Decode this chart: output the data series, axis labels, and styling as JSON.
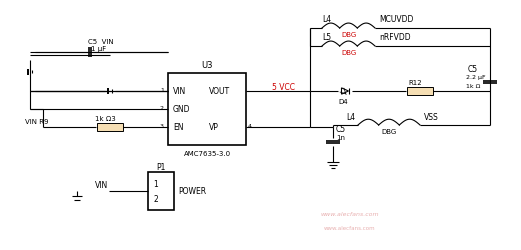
{
  "bg_color": "#ffffff",
  "line_color": "#000000",
  "ic_label": "U3",
  "ic_name": "AMC7635-3.0",
  "ic_vin": "VIN",
  "ic_vout": "VOUT",
  "ic_gnd": "GND",
  "ic_en": "EN",
  "ic_vp": "VP",
  "pin1": "1",
  "pin2": "2",
  "pin3": "3",
  "pin4": "4",
  "c5_top_lbl": "C5  VIN",
  "c5_top_val": "1 μF",
  "r9_lbl": "VIN R9",
  "r9_val": "1k Ω3",
  "p1_lbl": "P1",
  "power_lbl": "POWER",
  "vin_lbl": "VIN",
  "vcc_lbl": "5 VCC",
  "l4_top_lbl": "L4",
  "dbg1_lbl": "DBG",
  "l5_lbl": "L5",
  "dbg2_lbl": "DBG",
  "mcuvdd_lbl": "MCUVDD",
  "nrfvdd_lbl": "nRFVDD",
  "c5r_lbl": "C5",
  "c5r_val1": "2.2 μF",
  "c5r_val2": "1k Ω",
  "d4_lbl": "D4",
  "r12_lbl": "R12",
  "c5b_lbl": "C5",
  "c5b_val": "1n",
  "l4b_lbl": "L4",
  "dbg3_lbl": "DBG",
  "vss_lbl": "VSS",
  "watermark": "www.alecfans.com"
}
